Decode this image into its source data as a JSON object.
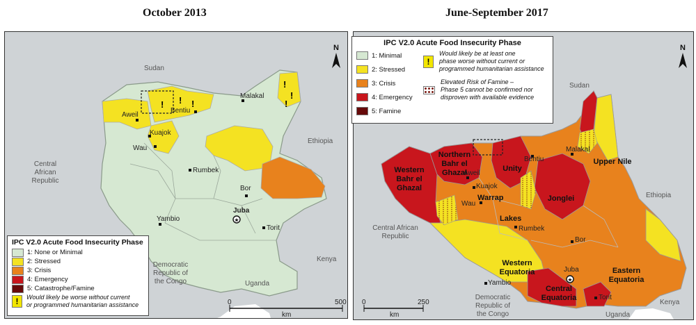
{
  "panels": {
    "left_title": "October 2013",
    "right_title": "June-September 2017"
  },
  "colors": {
    "minimal": "#d6e8d2",
    "stressed": "#f4e222",
    "crisis": "#e8821d",
    "emergency": "#c8161d",
    "famine": "#660a0a",
    "neighbor_land": "#cfd3d6",
    "water": "#ffffff"
  },
  "left_map": {
    "places": {
      "sudan": "Sudan",
      "malakal": "Malakal",
      "bentiu": "Bentiu",
      "aweil": "Aweil",
      "kuajok": "Kuajok",
      "wau": "Wau",
      "rumbek": "Rumbek",
      "bor": "Bor",
      "juba": "Juba",
      "yambio": "Yambio",
      "torit": "Torit",
      "ethiopia": "Ethiopia",
      "car": [
        "Central",
        "African",
        "Republic"
      ],
      "drc": [
        "Democratic",
        "Republic of",
        "the Congo"
      ],
      "kenya": "Kenya",
      "uganda": "Uganda"
    },
    "legend": {
      "title": "IPC V2.0 Acute Food Insecurity Phase",
      "items": [
        {
          "label": "1: None or Minimal",
          "color": "#d6e8d2"
        },
        {
          "label": "2: Stressed",
          "color": "#f4e222"
        },
        {
          "label": "3: Crisis",
          "color": "#e8821d"
        },
        {
          "label": "4: Emergency",
          "color": "#c8161d"
        },
        {
          "label": "5: Catastrophe/Famine",
          "color": "#660a0a"
        }
      ],
      "note_line1": "Would likely be worse without current",
      "note_line2": "or programmed humanitarian assistance",
      "note_icon": "!"
    },
    "scale": {
      "start": "0",
      "end": "500",
      "unit": "km"
    }
  },
  "right_map": {
    "places": {
      "sudan": "Sudan",
      "malakal": "Malakal",
      "bentiu": "Bentiu",
      "aweil": "Aweil",
      "kuajok": "Kuajok",
      "wau": "Wau",
      "rumbek": "Rumbek",
      "bor": "Bor",
      "juba": "Juba",
      "yambio": "Yambio",
      "torit": "Torit",
      "ethiopia": "Ethiopia",
      "car": [
        "Central African",
        "Republic"
      ],
      "drc": [
        "Democratic",
        "Republic of",
        "the Congo"
      ],
      "kenya": "Kenya",
      "uganda": "Uganda"
    },
    "states": {
      "western_bahr_el_ghazal": [
        "Western",
        "Bahr el",
        "Ghazal"
      ],
      "northern_bahr_el_ghazal": [
        "Northern",
        "Bahr el",
        "Ghazal"
      ],
      "unity": "Unity",
      "upper_nile": "Upper Nile",
      "warrap": "Warrap",
      "jonglei": "Jonglei",
      "lakes": "Lakes",
      "western_equatoria": [
        "Western",
        "Equatoria"
      ],
      "central_equatoria": [
        "Central",
        "Equatoria"
      ],
      "eastern_equatoria": [
        "Eastern",
        "Equatoria"
      ]
    },
    "legend": {
      "title": "IPC V2.0 Acute Food Insecurity Phase",
      "items": [
        {
          "label": "1: Minimal",
          "color": "#d6e8d2"
        },
        {
          "label": "2: Stressed",
          "color": "#f4e222"
        },
        {
          "label": "3: Crisis",
          "color": "#e8821d"
        },
        {
          "label": "4: Emergency",
          "color": "#c8161d"
        },
        {
          "label": "5: Famine",
          "color": "#660a0a"
        }
      ],
      "note1_icon": "!",
      "note1": [
        "Would likely be at least one",
        "phase worse without current or",
        "programmed humanitarian assistance"
      ],
      "note2": [
        "Elevated Risk of Famine –",
        "Phase 5 cannot be confirmed nor",
        "disproven with available evidence"
      ]
    },
    "scale": {
      "start": "0",
      "end": "250",
      "unit": "km"
    }
  },
  "north_arrow": "N"
}
